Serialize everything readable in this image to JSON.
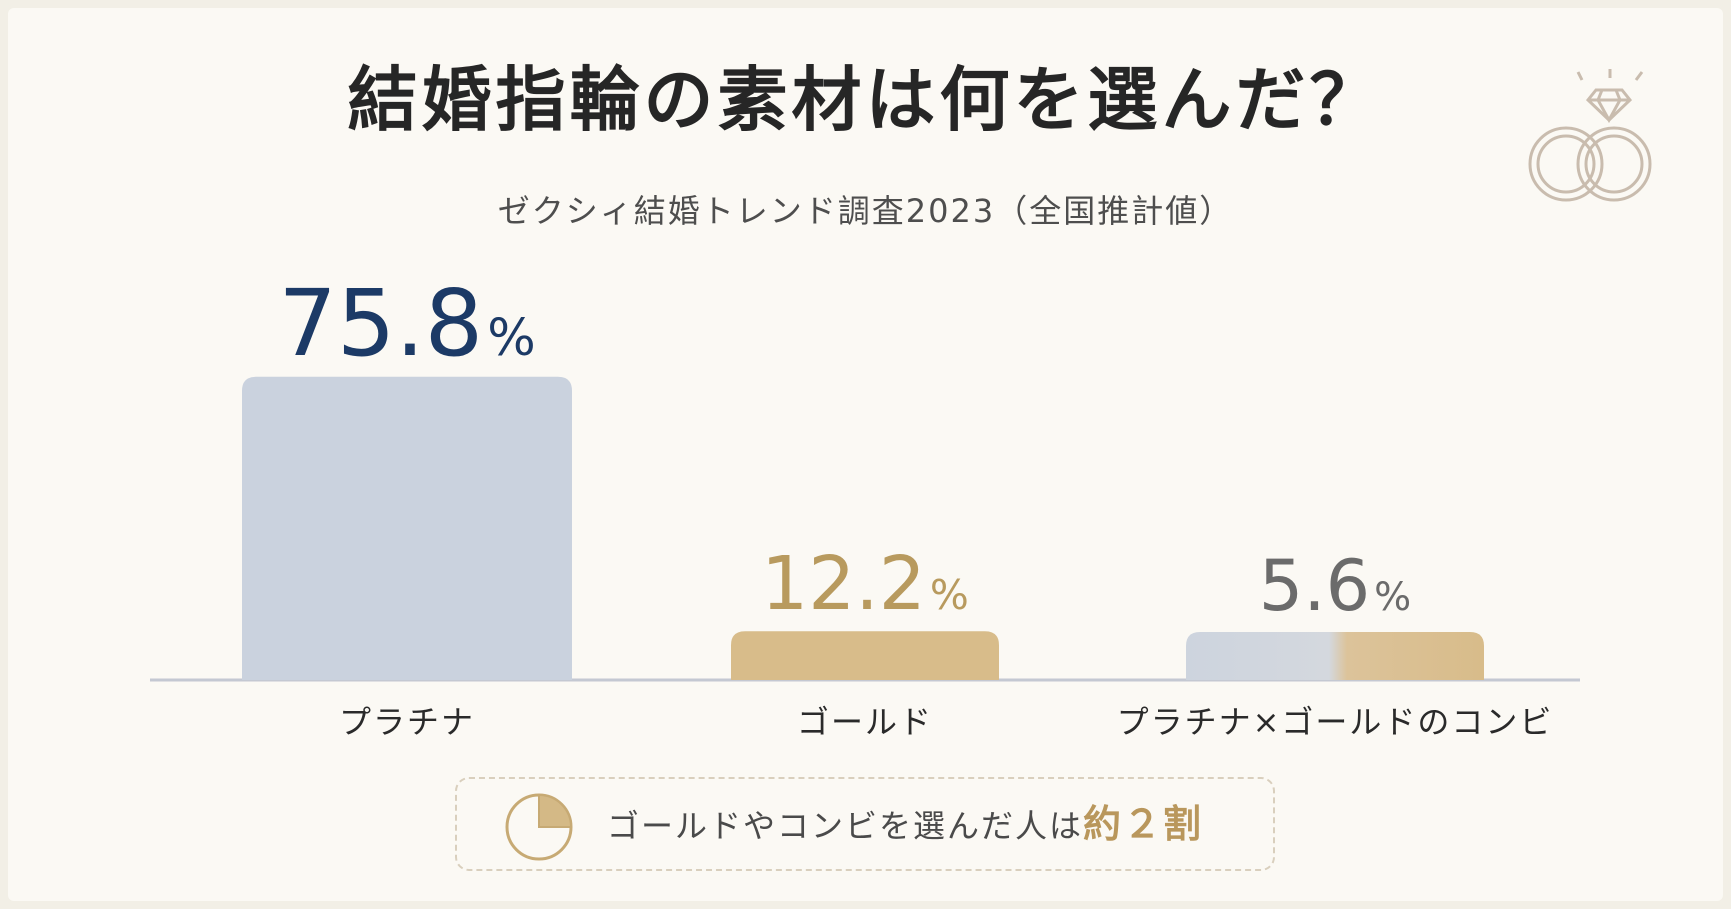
{
  "title": "結婚指輪の素材は何を選んだ？",
  "subtitle": "ゼクシィ結婚トレンド調査2023（全国推計値）",
  "callout": {
    "text": "ゴールドやコンビを選んだ人は",
    "emphasis_text": "約２割",
    "icon": "pie-icon"
  },
  "chart_data": {
    "type": "bar",
    "categories": [
      "プラチナ",
      "ゴールド",
      "プラチナ×ゴールドのコンビ"
    ],
    "values": [
      75.8,
      12.2,
      5.6
    ],
    "value_suffix": "%",
    "ylim": [
      0,
      80
    ],
    "grid": false,
    "colors": {
      "platinum": "#cad2de",
      "gold": "#d8bc8a",
      "combo_left": "#cdd4de",
      "combo_right": "#dcc39a",
      "label_platinum": "#1c3a66",
      "label_gold": "#b89a5e",
      "label_combo": "#6b6b6b",
      "baseline": "#c4c8d2"
    }
  },
  "decor": {
    "icon": "wedding-rings-icon",
    "stroke_color": "#c9bcae"
  }
}
